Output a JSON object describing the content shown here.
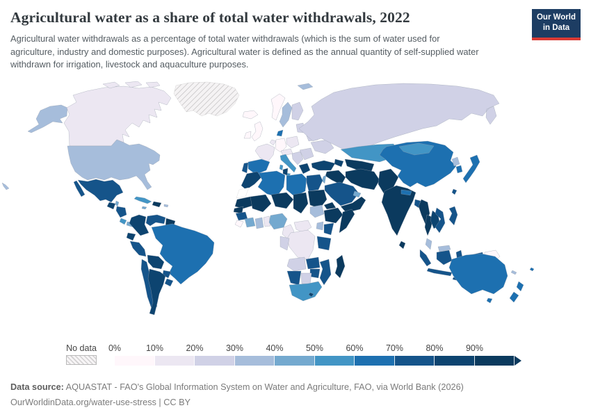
{
  "header": {
    "title": "Agricultural water as a share of total water withdrawals, 2022",
    "subtitle": "Agricultural water withdrawals as a percentage of total water withdrawals (which is the sum of water used for agriculture, industry and domestic purposes). Agricultural water is defined as the annual quantity of self-supplied water withdrawn for irrigation, livestock and aquaculture purposes.",
    "logo_line1": "Our World",
    "logo_line2": "in Data"
  },
  "legend": {
    "no_data_label": "No data",
    "ticks": [
      "0%",
      "10%",
      "20%",
      "30%",
      "40%",
      "50%",
      "60%",
      "70%",
      "80%",
      "90%"
    ],
    "bin_colors": [
      "#fff7fb",
      "#ece7f2",
      "#d0d1e6",
      "#a6bddb",
      "#74a9cf",
      "#4295c5",
      "#1d70b0",
      "#15548a",
      "#0d4470",
      "#0b3a5e"
    ]
  },
  "footer": {
    "source_label": "Data source:",
    "source_text": " AQUASTAT - FAO's Global Information System on Water and Agriculture, FAO, via World Bank (2026)",
    "note": "OurWorldinData.org/water-use-stress | CC BY"
  },
  "colors": {
    "logo_navy": "#1d3d63",
    "logo_red": "#d93a34",
    "no_data_hatch_line": "#d2d0d1",
    "border": "#96a0ad"
  },
  "chart_data": {
    "type": "choropleth",
    "title": "Agricultural water as a share of total water withdrawals, 2022",
    "unit": "% of total water withdrawals",
    "bins": [
      "0-10%",
      "10-20%",
      "20-30%",
      "30-40%",
      "40-50%",
      "50-60%",
      "60-70%",
      "70-80%",
      "80-90%",
      "90-100%"
    ],
    "bin_colors": [
      "#fff7fb",
      "#ece7f2",
      "#d0d1e6",
      "#a6bddb",
      "#74a9cf",
      "#4295c5",
      "#1d70b0",
      "#15548a",
      "#0d4470",
      "#0b3a5e"
    ],
    "no_data_style": "hatched",
    "regions": {
      "canada": 1,
      "arctic_island_1": 1,
      "arctic_island_2": 1,
      "arctic_island_3": 1,
      "alaska": 3,
      "usa": 3,
      "hawaii": 3,
      "greenland": "no_data",
      "mexico": 7,
      "guatemala": 8,
      "belize": 4,
      "honduras_nicaragua": 7,
      "costa_rica": 5,
      "panama": 4,
      "cuba": 5,
      "jamaica": 4,
      "hispaniola": 9,
      "puerto_rico": 3,
      "colombia": 8,
      "venezuela": 7,
      "guyana_suriname": 9,
      "ecuador": 8,
      "peru": 7,
      "brazil": 6,
      "bolivia": 8,
      "paraguay": 7,
      "chile": 7,
      "argentina": 8,
      "uruguay": 7,
      "iceland": 0,
      "uk": 0,
      "ireland": 0,
      "norway": 0,
      "sweden": 3,
      "finland": 2,
      "denmark": 6,
      "baltics": 2,
      "germany": 0,
      "france": 1,
      "benelux": 1,
      "poland": 1,
      "czech_austria": 1,
      "spain": 6,
      "portugal": 7,
      "italy": 5,
      "sicily": 5,
      "balkans": 2,
      "greece": 8,
      "romania_bulgaria": 2,
      "ukraine": 2,
      "belarus": 2,
      "russia": 2,
      "svalbard": 3,
      "turkey": 8,
      "caucasus": 8,
      "kazakhstan": 5,
      "central_asia": 9,
      "iran": 9,
      "iraq_syria": 9,
      "israel_lebanon": 4,
      "saudi_arabia": 7,
      "yemen_oman": 9,
      "uae_qatar": 4,
      "afghanistan_pakistan": 9,
      "india": 9,
      "sri_lanka": 9,
      "nepal_bhutan": 6,
      "bangladesh": 7,
      "myanmar": 9,
      "thailand": 9,
      "laos_cambodia": 8,
      "vietnam": 7,
      "malaysia_peninsula": 3,
      "china": 6,
      "mongolia": 5,
      "north_korea": 3,
      "south_korea": 6,
      "japan": 6,
      "taiwan": 7,
      "philippines": 7,
      "indonesia": 7,
      "malaysia_borneo": 3,
      "papua_new_guinea": 0,
      "australia": 6,
      "tasmania": 6,
      "new_zealand": 6,
      "fiji": 6,
      "new_caledonia": 3,
      "morocco": 8,
      "western_sahara": "blank",
      "algeria": 6,
      "tunisia": 8,
      "libya": 6,
      "egypt": 7,
      "mauritania": 9,
      "mali": 9,
      "niger": 9,
      "chad": 9,
      "sudan": 9,
      "eritrea_djibouti": 9,
      "senegal": 9,
      "guinea": 7,
      "sierra_leone_liberia": 0,
      "cote_divoire": 4,
      "ghana": 3,
      "togo_benin": 1,
      "nigeria": 4,
      "cameroon": 1,
      "central_african_republic": 1,
      "south_sudan": 3,
      "ethiopia": 9,
      "somalia": 9,
      "kenya": 7,
      "uganda": 3,
      "drc": 1,
      "congo_gabon": 2,
      "tanzania": 7,
      "angola": 2,
      "zambia": 7,
      "mozambique": 7,
      "zimbabwe": 7,
      "namibia": 7,
      "botswana": 2,
      "south_africa": 5,
      "lesotho": 8,
      "madagascar": 9
    }
  }
}
